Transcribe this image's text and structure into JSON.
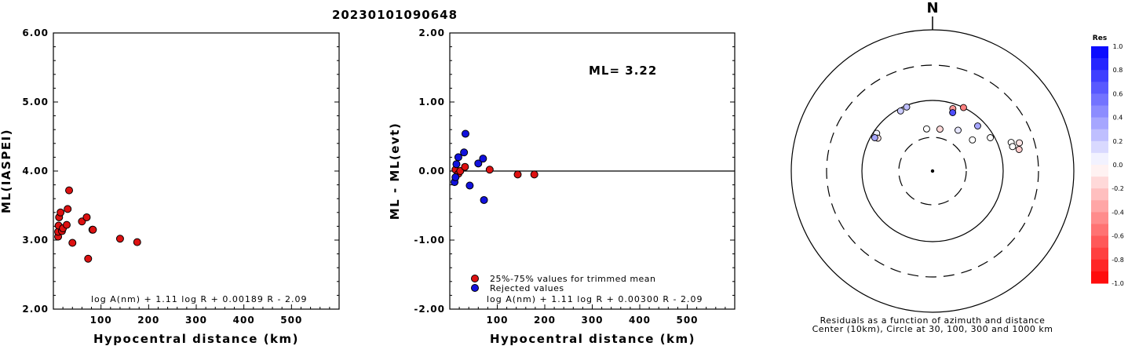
{
  "title": "20230101090648",
  "chart_data": [
    {
      "type": "scatter",
      "xlabel": "Hypocentral distance (km)",
      "ylabel": "ML(IASPEI)",
      "xlim": [
        0,
        600
      ],
      "ylim": [
        2.0,
        6.0
      ],
      "xticks": [
        "100",
        "200",
        "300",
        "400",
        "500"
      ],
      "yticks": [
        "2.00",
        "3.00",
        "4.00",
        "5.00",
        "6.00"
      ],
      "formula": "log A(nm) + 1.11 log R + 0.00189 R - 2.09",
      "series": [
        {
          "color": "#dd1111",
          "points": [
            [
              10,
              3.05
            ],
            [
              10,
              3.12
            ],
            [
              11,
              3.21
            ],
            [
              12,
              3.33
            ],
            [
              15,
              3.4
            ],
            [
              18,
              3.13
            ],
            [
              20,
              3.17
            ],
            [
              28,
              3.22
            ],
            [
              30,
              3.45
            ],
            [
              33,
              3.72
            ],
            [
              40,
              2.96
            ],
            [
              60,
              3.27
            ],
            [
              70,
              3.33
            ],
            [
              73,
              2.73
            ],
            [
              82,
              3.15
            ],
            [
              83,
              3.15
            ],
            [
              140,
              3.02
            ],
            [
              176,
              2.97
            ]
          ]
        }
      ]
    },
    {
      "type": "scatter",
      "xlabel": "Hypocentral distance (km)",
      "ylabel": "ML - ML(evt)",
      "xlim": [
        0,
        600
      ],
      "ylim": [
        -2.0,
        2.0
      ],
      "xticks": [
        "100",
        "200",
        "300",
        "400",
        "500"
      ],
      "yticks": [
        "-2.00",
        "-1.00",
        "0.00",
        "1.00",
        "2.00"
      ],
      "annotation": "ML= 3.22",
      "formula": "log A(nm) + 1.11 log R + 0.00300 R - 2.09",
      "legend": [
        {
          "label": "25%-75% values for trimmed mean",
          "color": "#dd1111"
        },
        {
          "label": "Rejected values",
          "color": "#1111dd"
        }
      ],
      "series": [
        {
          "color": "#dd1111",
          "points": [
            [
              12,
              0.02
            ],
            [
              18,
              -0.04
            ],
            [
              22,
              0.0
            ],
            [
              32,
              0.06
            ],
            [
              84,
              0.02
            ],
            [
              143,
              -0.05
            ],
            [
              178,
              -0.05
            ]
          ]
        },
        {
          "color": "#1111dd",
          "points": [
            [
              10,
              -0.16
            ],
            [
              12,
              -0.09
            ],
            [
              14,
              0.1
            ],
            [
              18,
              0.2
            ],
            [
              30,
              0.27
            ],
            [
              33,
              0.54
            ],
            [
              42,
              -0.21
            ],
            [
              60,
              0.11
            ],
            [
              70,
              0.18
            ],
            [
              72,
              -0.42
            ]
          ]
        }
      ]
    },
    {
      "type": "scatter",
      "subtype": "polar-azimuth-distance",
      "north_label": "N",
      "caption_line1": "Residuals as a function of azimuth and distance",
      "caption_line2": "Center (10km), Circle at 30, 100, 300 and 1000 km",
      "colorbar": {
        "title": "Res",
        "ticks": [
          "1.0",
          "0.8",
          "0.6",
          "0.4",
          "0.2",
          "0.0",
          "-0.2",
          "-0.4",
          "-0.6",
          "-0.8",
          "-1.0"
        ],
        "positive_color": "#0000ff",
        "negative_color": "#ff0000"
      },
      "points": [
        {
          "azimuth": 304,
          "distance_km": 90,
          "res": 0.05
        },
        {
          "azimuth": 301,
          "distance_km": 80,
          "res": -0.1
        },
        {
          "azimuth": 300,
          "distance_km": 88,
          "res": 0.35
        },
        {
          "azimuth": 332,
          "distance_km": 92,
          "res": 0.2
        },
        {
          "azimuth": 338,
          "distance_km": 95,
          "res": 0.25
        },
        {
          "azimuth": 352,
          "distance_km": 40,
          "res": 0.0
        },
        {
          "azimuth": 10,
          "distance_km": 40,
          "res": -0.15
        },
        {
          "azimuth": 32,
          "distance_km": 48,
          "res": 0.1
        },
        {
          "azimuth": 52,
          "distance_km": 52,
          "res": 0.0
        },
        {
          "azimuth": 18,
          "distance_km": 85,
          "res": -0.4
        },
        {
          "azimuth": 19,
          "distance_km": 75,
          "res": 0.7
        },
        {
          "azimuth": 26,
          "distance_km": 100,
          "res": -0.5
        },
        {
          "azimuth": 45,
          "distance_km": 80,
          "res": 0.35
        },
        {
          "azimuth": 60,
          "distance_km": 88,
          "res": 0.0
        },
        {
          "azimuth": 70,
          "distance_km": 150,
          "res": 0.0
        },
        {
          "azimuth": 73,
          "distance_km": 150,
          "res": 0.0
        },
        {
          "azimuth": 72,
          "distance_km": 190,
          "res": -0.1
        },
        {
          "azimuth": 76,
          "distance_km": 178,
          "res": -0.2
        }
      ]
    }
  ]
}
